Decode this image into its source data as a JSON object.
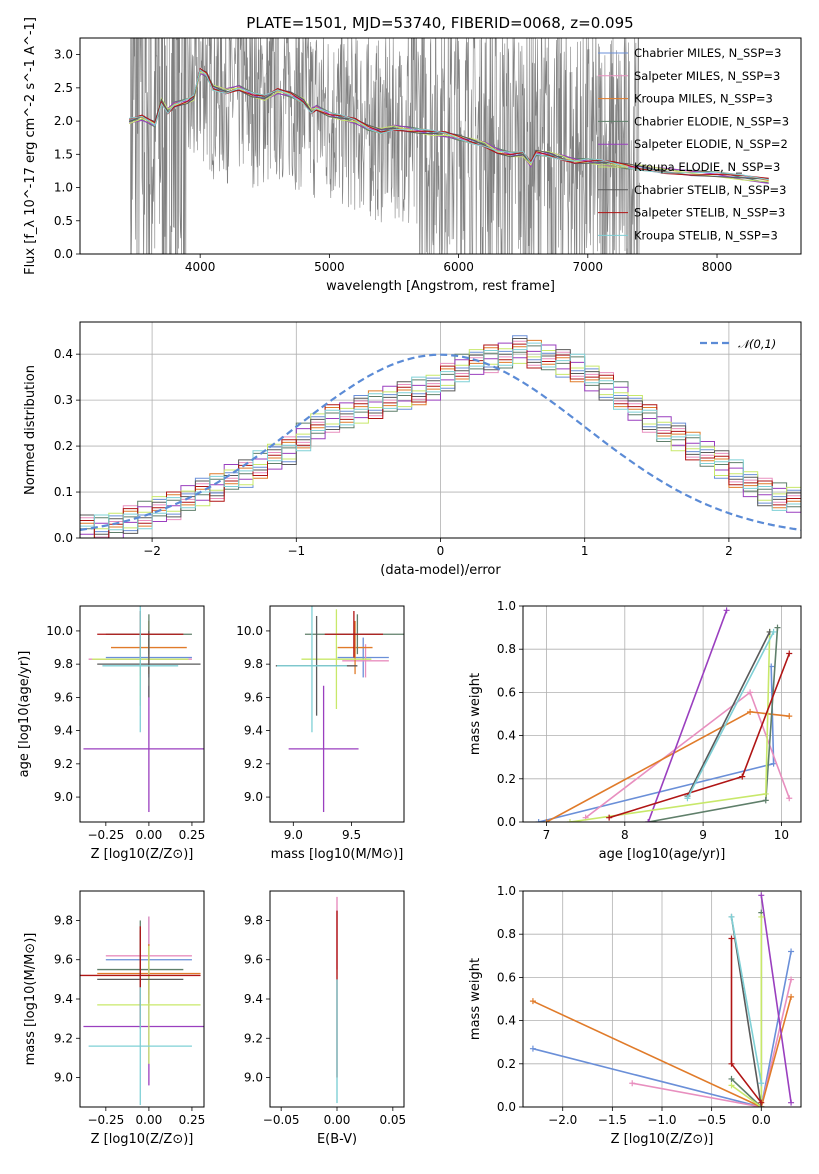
{
  "figure": {
    "title": "PLATE=1501, MJD=53740, FIBERID=0068, z=0.095"
  },
  "series_styles": [
    {
      "name": "Chabrier MILES, N_SSP=3",
      "color": "#6a8fd8"
    },
    {
      "name": "Salpeter MILES, N_SSP=3",
      "color": "#e88fbf"
    },
    {
      "name": "Kroupa MILES, N_SSP=3",
      "color": "#e07b2a"
    },
    {
      "name": "Chabrier ELODIE, N_SSP=3",
      "color": "#5f7f6a"
    },
    {
      "name": "Salpeter ELODIE, N_SSP=2",
      "color": "#9a3fbf"
    },
    {
      "name": "Kroupa ELODIE, N_SSP=3",
      "color": "#c8e86a"
    },
    {
      "name": "Chabrier STELIB, N_SSP=3",
      "color": "#5a5a5a"
    },
    {
      "name": "Salpeter STELIB, N_SSP=3",
      "color": "#b01515"
    },
    {
      "name": "Kroupa STELIB, N_SSP=3",
      "color": "#7fd0d6"
    }
  ],
  "chart_data": [
    {
      "id": "spectrum",
      "type": "line",
      "title": "PLATE=1501, MJD=53740, FIBERID=0068, z=0.095",
      "xlabel": "wavelength [Angstrom, rest frame]",
      "ylabel": "Flux [f_λ 10^-17 erg cm^-2 s^-1 A^-1]",
      "xlim": [
        3070,
        8650
      ],
      "ylim": [
        0,
        3.25
      ],
      "xticks": [
        4000,
        5000,
        6000,
        7000,
        8000
      ],
      "yticks": [
        0.0,
        0.5,
        1.0,
        1.5,
        2.0,
        2.5,
        3.0
      ],
      "grid": false,
      "legend_position": "top-right",
      "observed_color": "#808080",
      "model_curve": {
        "x": [
          3450,
          3550,
          3650,
          3700,
          3750,
          3800,
          3900,
          3950,
          4000,
          4050,
          4100,
          4200,
          4300,
          4400,
          4500,
          4600,
          4700,
          4800,
          4860,
          4900,
          5000,
          5100,
          5200,
          5300,
          5400,
          5500,
          5600,
          5700,
          5800,
          5900,
          6000,
          6100,
          6200,
          6300,
          6400,
          6500,
          6560,
          6600,
          6700,
          6800,
          6900,
          7000,
          7100,
          7200,
          7300,
          7400,
          7600,
          7800,
          8000,
          8200,
          8400
        ],
        "y": [
          2.0,
          2.05,
          1.95,
          2.3,
          2.15,
          2.25,
          2.3,
          2.35,
          2.75,
          2.7,
          2.5,
          2.45,
          2.5,
          2.4,
          2.35,
          2.45,
          2.4,
          2.3,
          2.15,
          2.2,
          2.1,
          2.05,
          2.0,
          1.9,
          1.85,
          1.9,
          1.88,
          1.85,
          1.82,
          1.8,
          1.75,
          1.7,
          1.65,
          1.55,
          1.5,
          1.5,
          1.35,
          1.52,
          1.5,
          1.45,
          1.4,
          1.4,
          1.38,
          1.35,
          1.32,
          1.3,
          1.25,
          1.22,
          1.2,
          1.15,
          1.1
        ]
      }
    },
    {
      "id": "residual-histogram",
      "type": "line",
      "xlabel": "(data-model)/error",
      "ylabel": "Normed distribution",
      "xlim": [
        -2.5,
        2.5
      ],
      "ylim": [
        0,
        0.47
      ],
      "xticks": [
        -2,
        -1,
        0,
        1,
        2
      ],
      "yticks": [
        0.0,
        0.1,
        0.2,
        0.3,
        0.4
      ],
      "grid": true,
      "legend_position": "top-right",
      "reference_curve": {
        "name": "𝒩(0,1)",
        "mean": 0,
        "sigma": 1,
        "color": "#5b8bd6"
      },
      "bin_width": 0.1,
      "histograms": [
        [
          0.02,
          0.02,
          0.03,
          0.04,
          0.05,
          0.06,
          0.07,
          0.09,
          0.1,
          0.11,
          0.13,
          0.14,
          0.16,
          0.18,
          0.19,
          0.22,
          0.24,
          0.26,
          0.27,
          0.28,
          0.29,
          0.3,
          0.31,
          0.32,
          0.33,
          0.35,
          0.37,
          0.38,
          0.39,
          0.4,
          0.41,
          0.4,
          0.39,
          0.38,
          0.37,
          0.35,
          0.33,
          0.31,
          0.28,
          0.26,
          0.24,
          0.22,
          0.2,
          0.18,
          0.16,
          0.14,
          0.12,
          0.1,
          0.09,
          0.08
        ]
      ]
    },
    {
      "id": "age-vs-Z",
      "type": "scatter",
      "xlabel": "Z [log10(Z/Z⊙)]",
      "ylabel": "age  [log10(age/yr)]",
      "xlim": [
        -0.4,
        0.32
      ],
      "ylim": [
        8.85,
        10.15
      ],
      "xticks": [
        -0.25,
        0.0,
        0.25
      ],
      "yticks": [
        9.0,
        9.2,
        9.4,
        9.6,
        9.8,
        10.0
      ],
      "grid": false,
      "points": [
        {
          "x": 0.0,
          "y": 9.84,
          "xerr": 0.25,
          "yerr": 0.12
        },
        {
          "x": -0.05,
          "y": 9.83,
          "xerr": 0.3,
          "yerr": 0.1
        },
        {
          "x": 0.0,
          "y": 9.9,
          "xerr": 0.22,
          "yerr": 0.16
        },
        {
          "x": 0.0,
          "y": 9.98,
          "xerr": 0.25,
          "yerr": 0.12
        },
        {
          "x": 0.0,
          "y": 9.29,
          "xerr": 0.38,
          "yerr": 0.38
        },
        {
          "x": -0.05,
          "y": 9.83,
          "xerr": 0.28,
          "yerr": 0.28
        },
        {
          "x": 0.0,
          "y": 9.8,
          "xerr": 0.3,
          "yerr": 0.2
        },
        {
          "x": -0.05,
          "y": 9.98,
          "xerr": 0.25,
          "yerr": 0.14
        },
        {
          "x": -0.05,
          "y": 9.79,
          "xerr": 0.22,
          "yerr": 0.4
        }
      ]
    },
    {
      "id": "age-vs-mass",
      "type": "scatter",
      "xlabel": "mass [log10(M/M⊙)]",
      "ylabel": "",
      "xlim": [
        8.8,
        9.95
      ],
      "ylim": [
        8.85,
        10.15
      ],
      "xticks": [
        9.0,
        9.5
      ],
      "yticks": [
        9.0,
        9.2,
        9.4,
        9.6,
        9.8,
        10.0
      ],
      "grid": false,
      "points": [
        {
          "x": 9.6,
          "y": 9.84,
          "xerr": 0.22,
          "yerr": 0.12
        },
        {
          "x": 9.62,
          "y": 9.82,
          "xerr": 0.2,
          "yerr": 0.1
        },
        {
          "x": 9.53,
          "y": 9.9,
          "xerr": 0.15,
          "yerr": 0.16
        },
        {
          "x": 9.55,
          "y": 9.98,
          "xerr": 0.45,
          "yerr": 0.12
        },
        {
          "x": 9.26,
          "y": 9.29,
          "xerr": 0.3,
          "yerr": 0.38
        },
        {
          "x": 9.37,
          "y": 9.83,
          "xerr": 0.3,
          "yerr": 0.3
        },
        {
          "x": 9.2,
          "y": 9.79,
          "xerr": 0.35,
          "yerr": 0.3
        },
        {
          "x": 9.52,
          "y": 9.98,
          "xerr": 0.25,
          "yerr": 0.14
        },
        {
          "x": 9.16,
          "y": 9.79,
          "xerr": 0.3,
          "yerr": 0.4
        }
      ]
    },
    {
      "id": "mass-weight-vs-age",
      "type": "line",
      "xlabel": "age  [log10(age/yr)]",
      "ylabel": "mass weight",
      "xlim": [
        6.7,
        10.25
      ],
      "ylim": [
        0.0,
        1.0
      ],
      "xticks": [
        7,
        8,
        9,
        10
      ],
      "yticks": [
        0.0,
        0.2,
        0.4,
        0.6,
        0.8,
        1.0
      ],
      "grid": true
    },
    {
      "id": "mass-vs-Z",
      "type": "scatter",
      "xlabel": "Z [log10(Z/Z⊙)]",
      "ylabel": "mass [log10(M/M⊙)]",
      "xlim": [
        -0.4,
        0.32
      ],
      "ylim": [
        8.85,
        9.95
      ],
      "xticks": [
        -0.25,
        0.0,
        0.25
      ],
      "yticks": [
        9.0,
        9.2,
        9.4,
        9.6,
        9.8
      ],
      "grid": false,
      "points": [
        {
          "x": 0.0,
          "y": 9.6,
          "xerr": 0.25,
          "yerr": 0.22
        },
        {
          "x": 0.0,
          "y": 9.62,
          "xerr": 0.25,
          "yerr": 0.2
        },
        {
          "x": 0.0,
          "y": 9.53,
          "xerr": 0.3,
          "yerr": 0.15
        },
        {
          "x": -0.05,
          "y": 9.55,
          "xerr": 0.25,
          "yerr": 0.25
        },
        {
          "x": 0.0,
          "y": 9.26,
          "xerr": 0.38,
          "yerr": 0.3
        },
        {
          "x": 0.0,
          "y": 9.37,
          "xerr": 0.3,
          "yerr": 0.3
        },
        {
          "x": -0.05,
          "y": 9.5,
          "xerr": 0.25,
          "yerr": 0.25
        },
        {
          "x": -0.05,
          "y": 9.52,
          "xerr": 0.35,
          "yerr": 0.25
        },
        {
          "x": -0.05,
          "y": 9.16,
          "xerr": 0.3,
          "yerr": 0.3
        }
      ]
    },
    {
      "id": "mass-vs-EBV",
      "type": "scatter",
      "xlabel": "E(B-V)",
      "ylabel": "",
      "xlim": [
        -0.06,
        0.06
      ],
      "ylim": [
        8.85,
        9.95
      ],
      "xticks": [
        -0.05,
        0.0,
        0.05
      ],
      "yticks": [
        9.0,
        9.2,
        9.4,
        9.6,
        9.8
      ],
      "grid": false
    },
    {
      "id": "mass-weight-vs-Z",
      "type": "line",
      "xlabel": "Z [log10(Z/Z⊙)]",
      "ylabel": "mass weight",
      "xlim": [
        -2.4,
        0.4
      ],
      "ylim": [
        0.0,
        1.0
      ],
      "xticks": [
        -2.0,
        -1.5,
        -1.0,
        -0.5,
        0.0
      ],
      "yticks": [
        0.0,
        0.2,
        0.4,
        0.6,
        0.8,
        1.0
      ],
      "grid": true
    }
  ]
}
